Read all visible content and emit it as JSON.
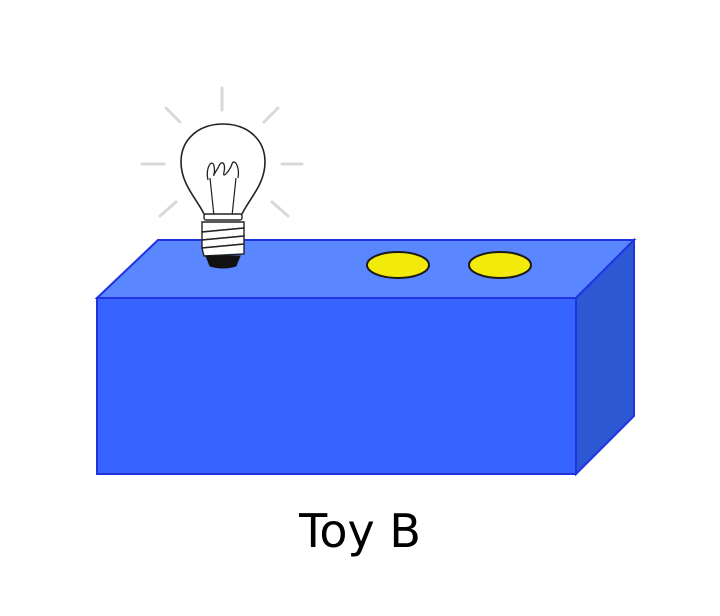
{
  "caption": "Toy B",
  "toy": {
    "name": "Toy B",
    "light_count": 1,
    "button_count": 2
  },
  "colors": {
    "box_front": "#3763ff",
    "box_top": "#5a86ff",
    "box_side": "#2c58d4",
    "box_stroke": "#1f34e0",
    "button_fill": "#f2ea0a",
    "button_stroke": "#1a1a1a",
    "bulb_ray": "#d9d9d9",
    "background": "#ffffff"
  },
  "icons": {
    "bulb": "light-bulb-icon",
    "button": "round-button-icon"
  }
}
